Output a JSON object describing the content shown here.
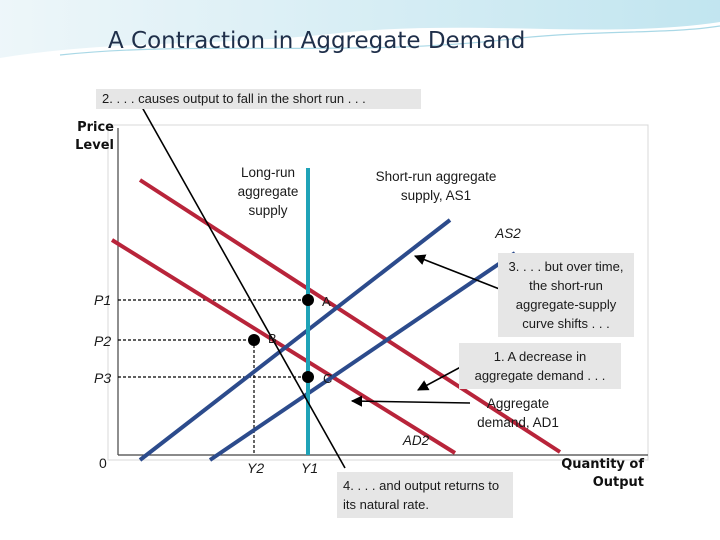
{
  "slide": {
    "title": "A Contraction in Aggregate Demand"
  },
  "chart_data": {
    "type": "line",
    "title": "",
    "xlabel": "Quantity of Output",
    "ylabel": "Price Level",
    "origin_label": "0",
    "x_ticks": [
      "Y2",
      "Y1"
    ],
    "y_ticks": [
      "P1",
      "P2",
      "P3"
    ],
    "curve_labels": {
      "lras": "Long-run aggregate supply",
      "as1": "Short-run aggregate supply, AS1",
      "as2": "AS2",
      "ad1": "Aggregate demand, AD1",
      "ad2": "AD2"
    },
    "points": [
      {
        "name": "A",
        "x": "Y1",
        "y": "P1"
      },
      {
        "name": "B",
        "x": "Y2",
        "y": "P2"
      },
      {
        "name": "C",
        "x": "Y1",
        "y": "P3"
      }
    ],
    "annotations": {
      "step1": "1. A decrease in aggregate demand . . .",
      "step2": "2. . . . causes output to fall in the short run . . .",
      "step3": "3. . . . but over time, the short-run aggregate-supply curve shifts . . .",
      "step4": "4. . . . and output returns to its natural rate."
    },
    "colors": {
      "lras": "#1fa3b8",
      "as_curves": "#2c4b8c",
      "ad_curves": "#b8243a",
      "title": "#1f2f4a"
    }
  }
}
